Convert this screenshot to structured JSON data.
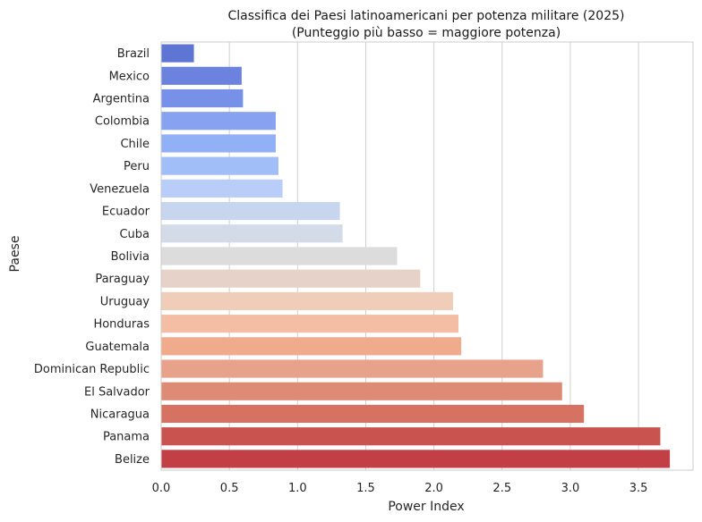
{
  "chart_data": {
    "type": "bar",
    "orientation": "horizontal",
    "title": "Classifica dei Paesi latinoamericani per potenza militare (2025)",
    "subtitle": "(Punteggio più basso = maggiore potenza)",
    "xlabel": "Power Index",
    "ylabel": "Paese",
    "xlim": [
      0,
      3.9
    ],
    "xticks": [
      "0.0",
      "0.5",
      "1.0",
      "1.5",
      "2.0",
      "2.5",
      "3.0",
      "3.5"
    ],
    "grid": "vertical",
    "categories": [
      "Brazil",
      "Mexico",
      "Argentina",
      "Colombia",
      "Chile",
      "Peru",
      "Venezuela",
      "Ecuador",
      "Cuba",
      "Bolivia",
      "Paraguay",
      "Uruguay",
      "Honduras",
      "Guatemala",
      "Dominican Republic",
      "El Salvador",
      "Nicaragua",
      "Panama",
      "Belize"
    ],
    "values": [
      0.24,
      0.59,
      0.6,
      0.84,
      0.84,
      0.86,
      0.89,
      1.31,
      1.33,
      1.73,
      1.9,
      2.14,
      2.18,
      2.2,
      2.8,
      2.94,
      3.1,
      3.66,
      3.73
    ],
    "colors": [
      "#5f75d4",
      "#6b82de",
      "#7790e8",
      "#86a2f0",
      "#92b0f5",
      "#a2bef8",
      "#b8cef8",
      "#c7d5ef",
      "#d4dbe8",
      "#dcdcdc",
      "#e6d2c8",
      "#f0cdb8",
      "#f3bea4",
      "#f0aa8c",
      "#e8a18a",
      "#dd8b74",
      "#d57262",
      "#c9534e",
      "#c23f45"
    ]
  }
}
